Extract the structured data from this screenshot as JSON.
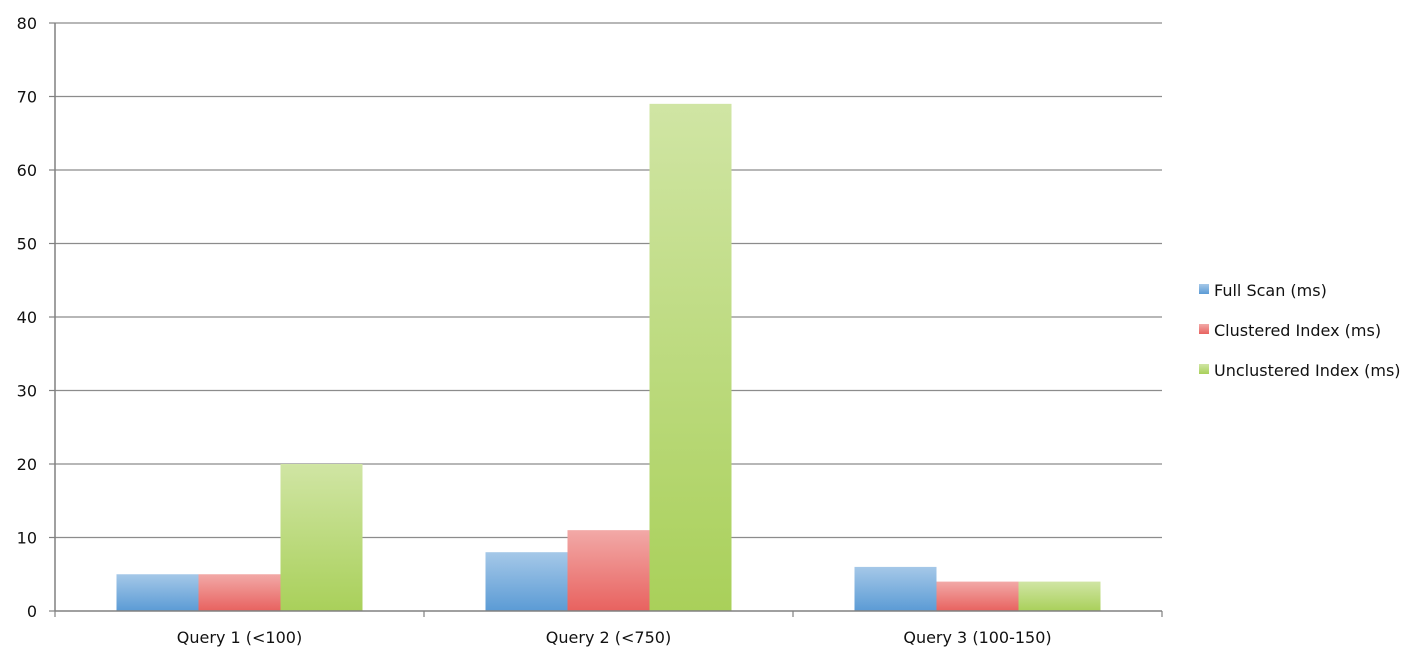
{
  "chart_data": {
    "type": "bar",
    "title": "",
    "xlabel": "",
    "ylabel": "",
    "categories": [
      "Query 1 (<100)",
      "Query 2 (<750)",
      "Query 3 (100-150)"
    ],
    "series": [
      {
        "name": "Full Scan (ms)",
        "values": [
          5,
          8,
          6
        ],
        "color": "#5b9bd5"
      },
      {
        "name": "Clustered Index (ms)",
        "values": [
          5,
          11,
          4
        ],
        "color": "#e8625f"
      },
      {
        "name": "Unclustered Index (ms)",
        "values": [
          20,
          69,
          4
        ],
        "color": "#a9d05a"
      }
    ],
    "ylim": [
      0,
      80
    ],
    "yticks": [
      "0",
      "10",
      "20",
      "30",
      "40",
      "50",
      "60",
      "70",
      "80"
    ],
    "grid": true,
    "legend": "right"
  }
}
